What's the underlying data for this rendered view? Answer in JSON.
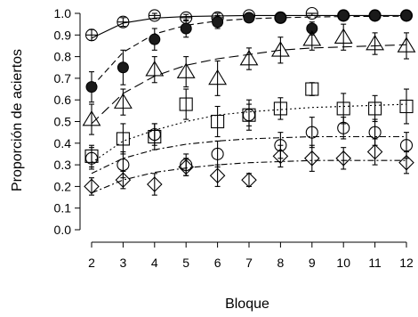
{
  "chart_data": {
    "type": "scatter",
    "title": "",
    "xlabel": "Bloque",
    "ylabel": "Proporción de aciertos",
    "xlim": [
      2,
      12
    ],
    "ylim": [
      0,
      1
    ],
    "x": [
      2,
      3,
      4,
      5,
      6,
      7,
      8,
      9,
      10,
      11,
      12
    ],
    "x_tick_labels": [
      "2",
      "3",
      "4",
      "5",
      "6",
      "7",
      "8",
      "9",
      "10",
      "11",
      "12"
    ],
    "y_ticks": [
      0,
      0.1,
      0.2,
      0.3,
      0.4,
      0.5,
      0.6,
      0.7,
      0.8,
      0.9,
      1.0
    ],
    "y_tick_labels": [
      "0.0",
      "0.1",
      "0.2",
      "0.3",
      "0.4",
      "0.5",
      "0.6",
      "0.7",
      "0.8",
      "0.9",
      "1.0"
    ],
    "grid": false,
    "legend": "none",
    "colors": {
      "ink": "#000000",
      "fill": "#1a1a1a"
    },
    "series": [
      {
        "marker": "open-circle-crossed",
        "line_style": "solid",
        "values": [
          0.9,
          0.96,
          0.99,
          0.98,
          0.98,
          0.99,
          0.98,
          1.0,
          0.99,
          0.99,
          0.99
        ],
        "errors": [
          0.025,
          0.02,
          0.015,
          0.015,
          0.02,
          0.01,
          0.01,
          0.01,
          0.01,
          0.01,
          0.01
        ],
        "fit": [
          0.885,
          0.955,
          0.978,
          0.985,
          0.988,
          0.99,
          0.99,
          0.99,
          0.99,
          0.99,
          0.99
        ]
      },
      {
        "marker": "filled-circle",
        "line_style": "dashed",
        "values": [
          0.66,
          0.75,
          0.88,
          0.93,
          0.96,
          0.98,
          0.98,
          0.93,
          0.99,
          0.99,
          0.99
        ],
        "errors": [
          0.07,
          0.08,
          0.05,
          0.04,
          0.03,
          0.02,
          0.02,
          0.03,
          0.01,
          0.01,
          0.01
        ],
        "fit": [
          0.66,
          0.82,
          0.905,
          0.945,
          0.965,
          0.975,
          0.98,
          0.983,
          0.985,
          0.986,
          0.987
        ]
      },
      {
        "marker": "open-triangle",
        "line_style": "long-dash",
        "values": [
          0.51,
          0.59,
          0.74,
          0.73,
          0.7,
          0.79,
          0.83,
          0.88,
          0.89,
          0.86,
          0.85
        ],
        "errors": [
          0.07,
          0.06,
          0.06,
          0.07,
          0.08,
          0.05,
          0.06,
          0.05,
          0.06,
          0.05,
          0.06
        ],
        "fit": [
          0.49,
          0.63,
          0.71,
          0.76,
          0.79,
          0.81,
          0.83,
          0.84,
          0.845,
          0.85,
          0.855
        ]
      },
      {
        "marker": "open-square",
        "line_style": "dotted",
        "values": [
          0.34,
          0.42,
          0.43,
          0.58,
          0.5,
          0.53,
          0.56,
          0.65,
          0.56,
          0.56,
          0.57
        ],
        "errors": [
          0.05,
          0.07,
          0.06,
          0.07,
          0.07,
          0.07,
          0.05,
          0.03,
          0.07,
          0.06,
          0.08
        ],
        "fit": [
          0.31,
          0.41,
          0.46,
          0.5,
          0.53,
          0.545,
          0.555,
          0.565,
          0.57,
          0.575,
          0.58
        ]
      },
      {
        "marker": "open-circle",
        "line_style": "dash-dot",
        "values": [
          0.33,
          0.3,
          0.44,
          0.3,
          0.35,
          0.53,
          0.39,
          0.45,
          0.47,
          0.45,
          0.39
        ],
        "errors": [
          0.05,
          0.06,
          0.05,
          0.05,
          0.06,
          0.05,
          0.06,
          0.07,
          0.05,
          0.06,
          0.06
        ],
        "fit": [
          0.26,
          0.33,
          0.37,
          0.395,
          0.41,
          0.42,
          0.425,
          0.43,
          0.43,
          0.43,
          0.43
        ]
      },
      {
        "marker": "open-diamond",
        "line_style": "dash-dot",
        "values": [
          0.2,
          0.23,
          0.21,
          0.29,
          0.25,
          0.23,
          0.34,
          0.33,
          0.33,
          0.36,
          0.31
        ],
        "errors": [
          0.04,
          0.04,
          0.05,
          0.04,
          0.05,
          0.03,
          0.05,
          0.06,
          0.05,
          0.06,
          0.05
        ],
        "fit": [
          0.17,
          0.23,
          0.265,
          0.285,
          0.3,
          0.31,
          0.315,
          0.32,
          0.32,
          0.32,
          0.32
        ]
      }
    ]
  }
}
